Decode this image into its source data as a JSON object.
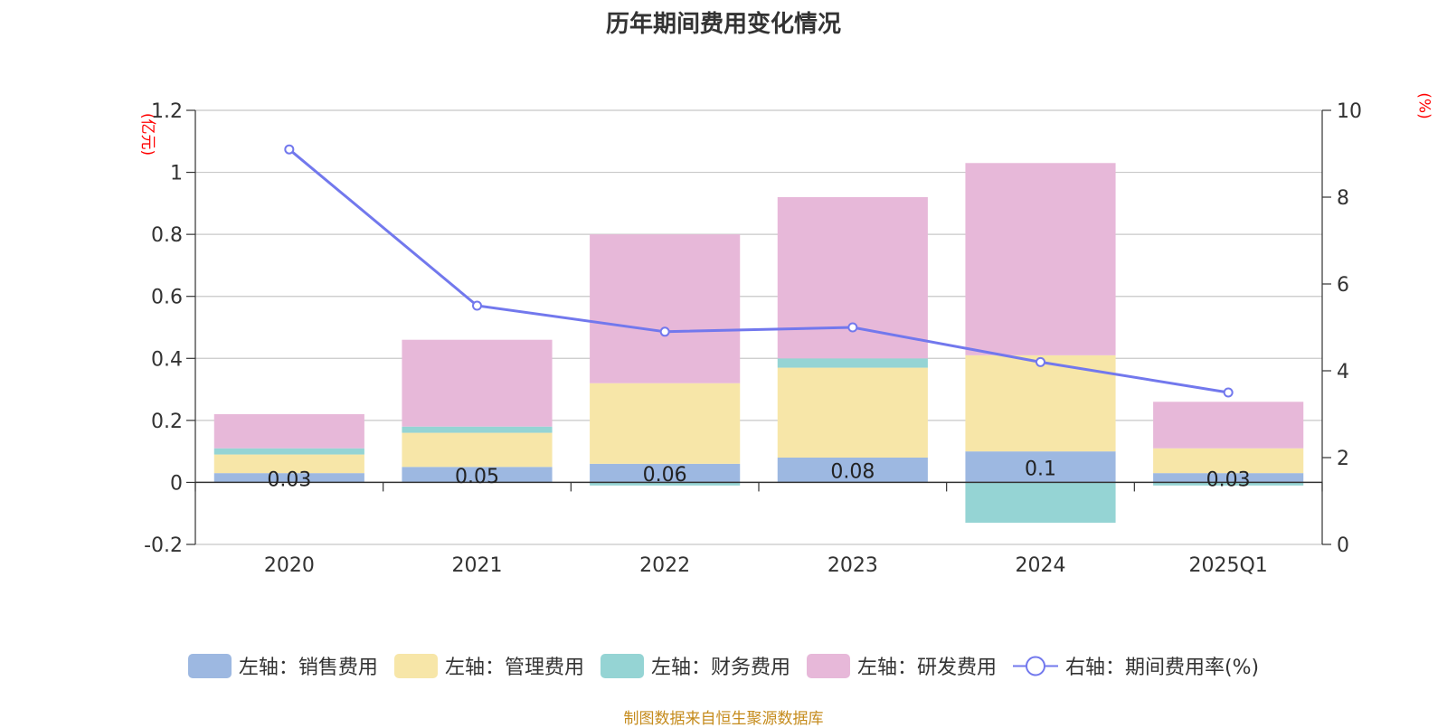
{
  "colors": {
    "sales": "#9db8e1",
    "admin": "#f7e6a8",
    "finance": "#95d4d4",
    "rd": "#e7b8d9",
    "rate": "#7278ed"
  },
  "chart_data": {
    "type": "bar",
    "title": "历年期间费用变化情况",
    "left_unit": "(亿元)",
    "right_unit": "(%)",
    "categories": [
      "2020",
      "2021",
      "2022",
      "2023",
      "2024",
      "2025Q1"
    ],
    "left_axis": {
      "ylim": [
        -0.2,
        1.2
      ],
      "ticks": [
        "-0.2",
        "0",
        "0.2",
        "0.4",
        "0.6",
        "0.8",
        "1",
        "1.2"
      ]
    },
    "right_axis": {
      "ylim": [
        0,
        10
      ],
      "ticks": [
        "0",
        "2",
        "4",
        "6",
        "8",
        "10"
      ]
    },
    "grid": true,
    "stacked": true,
    "series": [
      {
        "name": "左轴：销售费用",
        "key": "sales",
        "values": [
          0.03,
          0.05,
          0.06,
          0.08,
          0.1,
          0.03
        ],
        "labels": [
          "0.03",
          "0.05",
          "0.06",
          "0.08",
          "0.1",
          "0.03"
        ]
      },
      {
        "name": "左轴：管理费用",
        "key": "admin",
        "values": [
          0.06,
          0.11,
          0.26,
          0.29,
          0.31,
          0.08
        ]
      },
      {
        "name": "左轴：财务费用",
        "key": "finance",
        "values": [
          0.02,
          0.02,
          -0.01,
          0.03,
          -0.13,
          -0.01
        ]
      },
      {
        "name": "左轴：研发费用",
        "key": "rd",
        "values": [
          0.11,
          0.28,
          0.48,
          0.52,
          0.62,
          0.15
        ]
      }
    ],
    "line_series": {
      "name": "右轴：期间费用率(%)",
      "key": "rate",
      "values": [
        9.1,
        5.5,
        4.9,
        5.0,
        4.2,
        3.5
      ]
    },
    "legend_position": "bottom"
  },
  "source": "制图数据来自恒生聚源数据库"
}
